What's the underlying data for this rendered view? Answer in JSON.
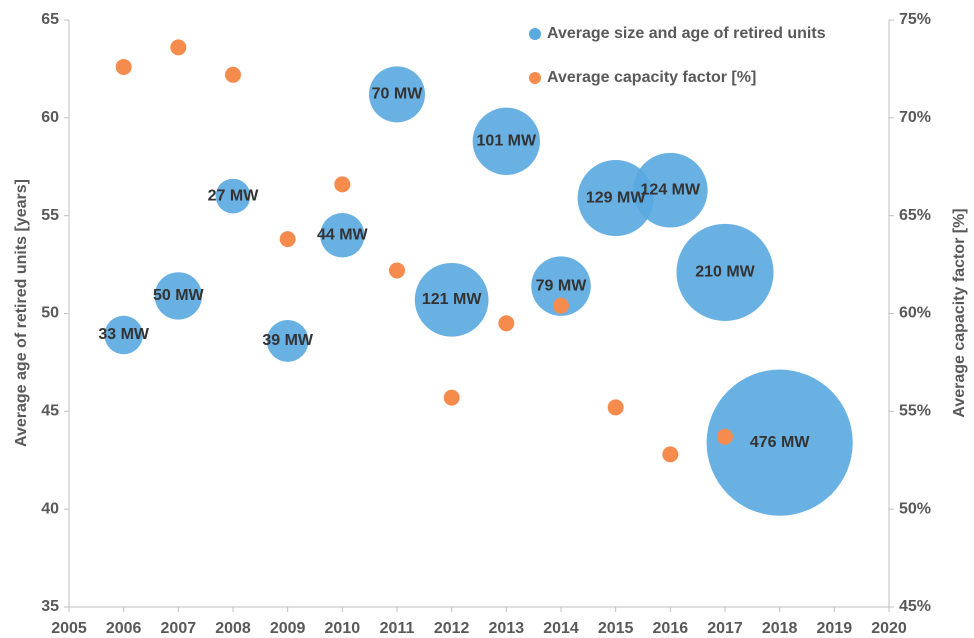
{
  "chart_data": {
    "type": "bubble",
    "ylabel": "Average age of retired units [years]",
    "y2label": "Average capacity factor [%]",
    "xlim": [
      2005,
      2020
    ],
    "xticks": [
      2005,
      2006,
      2007,
      2008,
      2009,
      2010,
      2011,
      2012,
      2013,
      2014,
      2015,
      2016,
      2017,
      2018,
      2019,
      2020
    ],
    "ylim": [
      35,
      65
    ],
    "yticks": [
      35,
      40,
      45,
      50,
      55,
      60,
      65
    ],
    "y2lim": [
      45,
      75
    ],
    "y2ticks": [
      {
        "value": 45,
        "label": "45%"
      },
      {
        "value": 50,
        "label": "50%"
      },
      {
        "value": 55,
        "label": "55%"
      },
      {
        "value": 60,
        "label": "60%"
      },
      {
        "value": 65,
        "label": "65%"
      },
      {
        "value": 70,
        "label": "70%"
      },
      {
        "value": 75,
        "label": "75%"
      }
    ],
    "grid": false,
    "legend": "top-right",
    "series": [
      {
        "name": "Average size and age of retired units",
        "type": "bubble",
        "color": "#5aa9e0",
        "x": [
          2006,
          2007,
          2008,
          2009,
          2010,
          2011,
          2012,
          2013,
          2014,
          2015,
          2016,
          2017,
          2018
        ],
        "values": [
          48.9,
          50.9,
          56.0,
          48.6,
          54.0,
          61.2,
          50.7,
          58.8,
          51.4,
          55.9,
          56.3,
          52.1,
          43.4
        ],
        "sizes": [
          33,
          50,
          27,
          39,
          44,
          70,
          121,
          101,
          79,
          129,
          124,
          210,
          476
        ],
        "value_labels": [
          "33 MW",
          "50 MW",
          "27 MW",
          "39 MW",
          "44 MW",
          "70 MW",
          "121 MW",
          "101 MW",
          "79 MW",
          "129 MW",
          "124 MW",
          "210 MW",
          "476 MW"
        ]
      },
      {
        "name": "Average capacity factor [%]",
        "type": "scatter",
        "color": "#f58b4c",
        "axis": "y2",
        "x": [
          2006,
          2007,
          2008,
          2009,
          2010,
          2011,
          2012,
          2013,
          2014,
          2015,
          2016,
          2017
        ],
        "values": [
          72.6,
          73.6,
          72.2,
          63.8,
          66.6,
          62.2,
          55.7,
          59.5,
          60.4,
          55.2,
          52.8,
          53.7
        ]
      }
    ]
  }
}
